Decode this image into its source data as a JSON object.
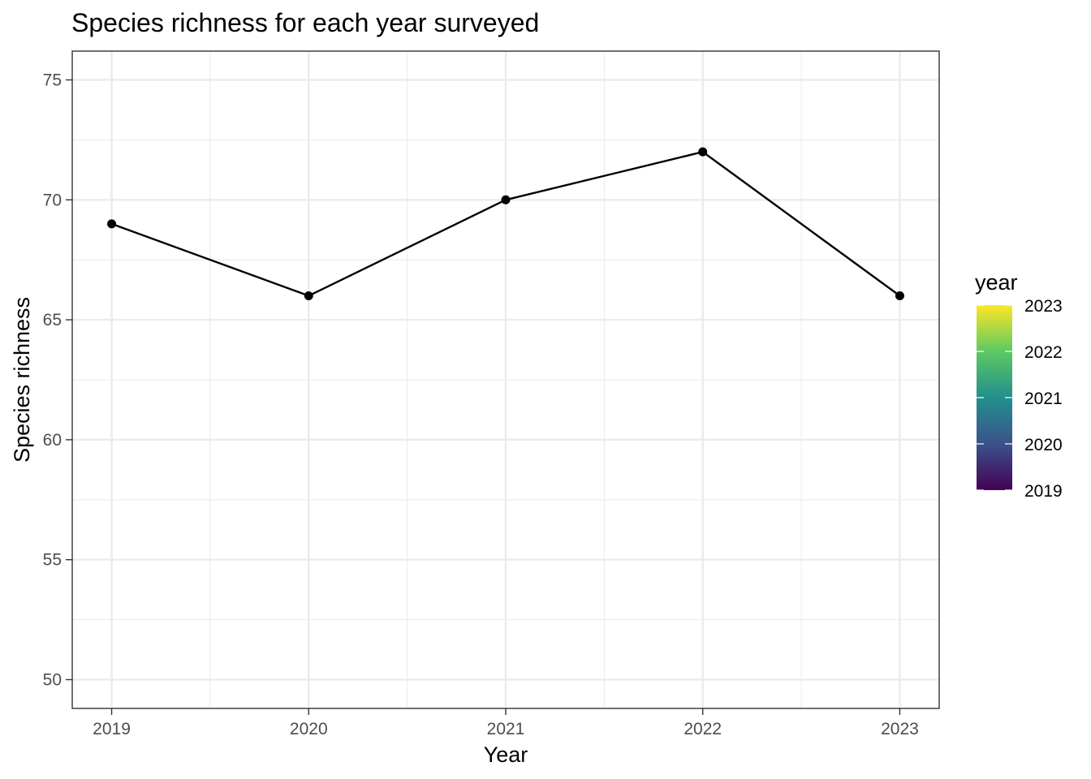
{
  "chart_data": {
    "type": "line",
    "title": "Species richness for each year surveyed",
    "xlabel": "Year",
    "ylabel": "Species richness",
    "x": [
      2019,
      2020,
      2021,
      2022,
      2023
    ],
    "y": [
      69,
      66,
      70,
      72,
      66
    ],
    "xlim": [
      2018.8,
      2023.2
    ],
    "ylim": [
      48.8,
      76.2
    ],
    "x_ticks": [
      "2019",
      "2020",
      "2021",
      "2022",
      "2023"
    ],
    "y_ticks": [
      "50",
      "55",
      "60",
      "65",
      "70",
      "75"
    ],
    "grid": true,
    "line_color": "#000000",
    "point_color": "#000000",
    "legend": {
      "title": "year",
      "placement": "right",
      "type": "colorbar",
      "labels": [
        "2023",
        "2022",
        "2021",
        "2020",
        "2019"
      ],
      "range": [
        2019,
        2023
      ],
      "colors": [
        "#440154",
        "#3b528b",
        "#21908c",
        "#5dc963",
        "#fde725"
      ]
    }
  }
}
